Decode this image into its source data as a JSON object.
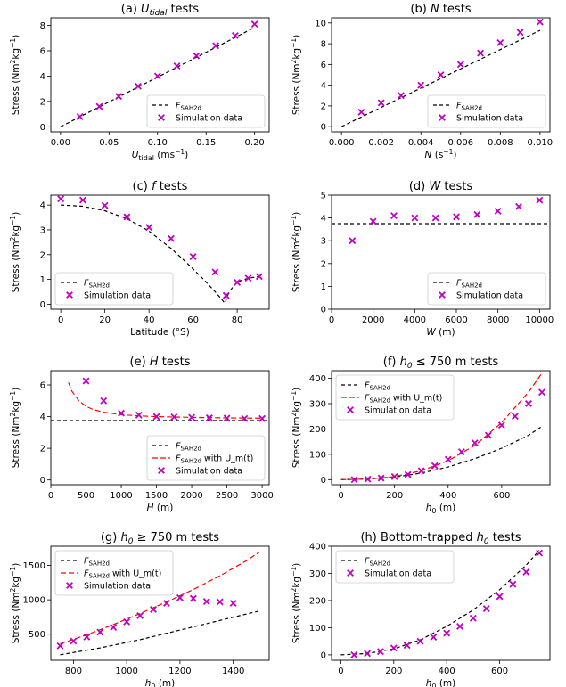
{
  "chart_data": [
    {
      "type": "scatter",
      "title_main": "(a) ",
      "title_sym": "U",
      "title_sub": "tidal",
      "title_tail": " tests",
      "xlabel_sym": "U",
      "xlabel_sub": "tidal",
      "xlabel_tail": " (ms",
      "xlabel_sup": "−1",
      "xlabel_end": ")",
      "ylabel": "Stress (Nm",
      "ylabel_sup": "2",
      "ylabel_mid": "kg",
      "ylabel_sup2": "−1",
      "ylabel_end": ")",
      "xlim": [
        -0.01,
        0.215
      ],
      "ylim": [
        -0.4,
        8.6
      ],
      "xticks": [
        0.0,
        0.05,
        0.1,
        0.15,
        0.2
      ],
      "xtick_labels": [
        "0.00",
        "0.05",
        "0.10",
        "0.15",
        "0.20"
      ],
      "yticks": [
        0,
        2,
        4,
        6,
        8
      ],
      "ytick_labels": [
        "0",
        "2",
        "4",
        "6",
        "8"
      ],
      "lines": [
        {
          "name": "F_SAH2d",
          "color": "#000000",
          "x": [
            0.0,
            0.05,
            0.1,
            0.15,
            0.2
          ],
          "y": [
            0.0,
            1.96,
            3.92,
            5.88,
            7.84
          ]
        }
      ],
      "points": {
        "name": "Simulation data",
        "color": "#c000c0",
        "x": [
          0.02,
          0.04,
          0.06,
          0.08,
          0.1,
          0.12,
          0.14,
          0.16,
          0.18,
          0.2
        ],
        "y": [
          0.8,
          1.6,
          2.4,
          3.2,
          4.0,
          4.8,
          5.6,
          6.4,
          7.2,
          8.1
        ]
      },
      "legend_position": "bottom-right",
      "legend_entries": [
        {
          "label_main": "F",
          "label_sub": "SAH2d",
          "label_tail": ""
        },
        {
          "label_main": "Simulation data",
          "label_sub": "",
          "label_tail": ""
        }
      ]
    },
    {
      "type": "scatter",
      "title_main": "(b) ",
      "title_sym": "N",
      "title_sub": "",
      "title_tail": " tests",
      "xlabel_sym": "N",
      "xlabel_sub": "",
      "xlabel_tail": " (s",
      "xlabel_sup": "−1",
      "xlabel_end": ")",
      "ylabel": "Stress (Nm",
      "ylabel_sup": "2",
      "ylabel_mid": "kg",
      "ylabel_sup2": "−1",
      "ylabel_end": ")",
      "xlim": [
        -0.0005,
        0.0105
      ],
      "ylim": [
        -0.5,
        10.5
      ],
      "xticks": [
        0.0,
        0.002,
        0.004,
        0.006,
        0.008,
        0.01
      ],
      "xtick_labels": [
        "0.000",
        "0.002",
        "0.004",
        "0.006",
        "0.008",
        "0.010"
      ],
      "yticks": [
        0,
        2,
        4,
        6,
        8,
        10
      ],
      "ytick_labels": [
        "0",
        "2",
        "4",
        "6",
        "8",
        "10"
      ],
      "lines": [
        {
          "name": "F_SAH2d",
          "color": "#000000",
          "x": [
            0.0,
            0.01
          ],
          "y": [
            0.0,
            9.3
          ]
        }
      ],
      "points": {
        "name": "Simulation data",
        "color": "#c000c0",
        "x": [
          0.001,
          0.002,
          0.003,
          0.004,
          0.005,
          0.006,
          0.007,
          0.008,
          0.009,
          0.01
        ],
        "y": [
          1.4,
          2.3,
          3.0,
          4.0,
          5.0,
          6.0,
          7.1,
          8.1,
          9.1,
          10.1
        ]
      },
      "legend_position": "bottom-right",
      "legend_entries": [
        {
          "label_main": "F",
          "label_sub": "SAH2d",
          "label_tail": ""
        },
        {
          "label_main": "Simulation data",
          "label_sub": "",
          "label_tail": ""
        }
      ]
    },
    {
      "type": "scatter",
      "title_main": "(c) ",
      "title_sym": "f",
      "title_sub": "",
      "title_tail": " tests",
      "xlabel_sym": "",
      "xlabel_sub": "",
      "xlabel_tail": "Latitude (°S)",
      "xlabel_sup": "",
      "xlabel_end": "",
      "ylabel": "Stress (Nm",
      "ylabel_sup": "2",
      "ylabel_mid": "kg",
      "ylabel_sup2": "−1",
      "ylabel_end": ")",
      "xlim": [
        -4.5,
        94.5
      ],
      "ylim": [
        -0.2,
        4.4
      ],
      "xticks": [
        0,
        20,
        40,
        60,
        80
      ],
      "xtick_labels": [
        "0",
        "20",
        "40",
        "60",
        "80"
      ],
      "yticks": [
        0,
        1,
        2,
        3,
        4
      ],
      "ytick_labels": [
        "0",
        "1",
        "2",
        "3",
        "4"
      ],
      "lines": [
        {
          "name": "F_SAH2d",
          "color": "#000000",
          "x": [
            0,
            10,
            20,
            30,
            40,
            50,
            55,
            60,
            65,
            70,
            72,
            74,
            74.5,
            76,
            78,
            80,
            85,
            90
          ],
          "y": [
            4.0,
            3.95,
            3.77,
            3.45,
            2.95,
            2.25,
            1.85,
            1.42,
            0.98,
            0.5,
            0.3,
            0.08,
            0.05,
            0.42,
            0.7,
            0.9,
            1.05,
            1.12
          ]
        }
      ],
      "points": {
        "name": "Simulation data",
        "color": "#c000c0",
        "x": [
          0,
          10,
          20,
          30,
          40,
          50,
          60,
          70,
          75,
          80,
          85,
          90
        ],
        "y": [
          4.25,
          4.2,
          3.98,
          3.52,
          3.1,
          2.65,
          1.92,
          1.3,
          0.35,
          0.88,
          1.05,
          1.12
        ]
      },
      "legend_position": "bottom-left",
      "legend_entries": [
        {
          "label_main": "F",
          "label_sub": "SAH2d",
          "label_tail": ""
        },
        {
          "label_main": "Simulation data",
          "label_sub": "",
          "label_tail": ""
        }
      ]
    },
    {
      "type": "scatter",
      "title_main": "(d) ",
      "title_sym": "W",
      "title_sub": "",
      "title_tail": " tests",
      "xlabel_sym": "W",
      "xlabel_sub": "",
      "xlabel_tail": " (m)",
      "xlabel_sup": "",
      "xlabel_end": "",
      "ylabel": "Stress (Nm",
      "ylabel_sup": "2",
      "ylabel_mid": "kg",
      "ylabel_sup2": "−1",
      "ylabel_end": ")",
      "xlim": [
        0,
        10500
      ],
      "ylim": [
        0,
        5
      ],
      "xticks": [
        0,
        2000,
        4000,
        6000,
        8000,
        10000
      ],
      "xtick_labels": [
        "0",
        "2000",
        "4000",
        "6000",
        "8000",
        "10000"
      ],
      "yticks": [
        0,
        1,
        2,
        3,
        4,
        5
      ],
      "ytick_labels": [
        "0",
        "1",
        "2",
        "3",
        "4",
        "5"
      ],
      "lines": [
        {
          "name": "F_SAH2d",
          "color": "#000000",
          "x": [
            0,
            10500
          ],
          "y": [
            3.75,
            3.75
          ]
        }
      ],
      "points": {
        "name": "Simulation data",
        "color": "#c000c0",
        "x": [
          1000,
          2000,
          3000,
          4000,
          5000,
          6000,
          7000,
          8000,
          9000,
          10000
        ],
        "y": [
          3.0,
          3.85,
          4.1,
          4.0,
          4.0,
          4.05,
          4.15,
          4.3,
          4.5,
          4.78
        ]
      },
      "legend_position": "bottom-right",
      "legend_entries": [
        {
          "label_main": "F",
          "label_sub": "SAH2d",
          "label_tail": ""
        },
        {
          "label_main": "Simulation data",
          "label_sub": "",
          "label_tail": ""
        }
      ]
    },
    {
      "type": "scatter",
      "title_main": "(e) ",
      "title_sym": "H",
      "title_sub": "",
      "title_tail": " tests",
      "xlabel_sym": "H",
      "xlabel_sub": "",
      "xlabel_tail": " (m)",
      "xlabel_sup": "",
      "xlabel_end": "",
      "ylabel": "Stress (Nm",
      "ylabel_sup": "2",
      "ylabel_mid": "kg",
      "ylabel_sup2": "−1",
      "ylabel_end": ")",
      "xlim": [
        0,
        3100
      ],
      "ylim": [
        -0.3,
        6.9
      ],
      "xticks": [
        0,
        500,
        1000,
        1500,
        2000,
        2500,
        3000
      ],
      "xtick_labels": [
        "0",
        "500",
        "1000",
        "1500",
        "2000",
        "2500",
        "3000"
      ],
      "yticks": [
        0,
        2,
        4,
        6
      ],
      "ytick_labels": [
        "0",
        "2",
        "4",
        "6"
      ],
      "lines": [
        {
          "name": "F_SAH2d",
          "color": "#000000",
          "dash": "4,3",
          "x": [
            0,
            3100
          ],
          "y": [
            3.75,
            3.75
          ]
        },
        {
          "name": "F_SAH2d with U_m(t)",
          "color": "#ff0000",
          "dash": "6,3",
          "x": [
            250,
            300,
            400,
            500,
            600,
            750,
            1000,
            1250,
            1500,
            2000,
            2500,
            3000
          ],
          "y": [
            6.15,
            5.6,
            5.0,
            4.65,
            4.45,
            4.28,
            4.12,
            4.05,
            4.0,
            3.95,
            3.92,
            3.9
          ]
        }
      ],
      "points": {
        "name": "Simulation data",
        "color": "#c000c0",
        "x": [
          500,
          750,
          1000,
          1250,
          1500,
          1750,
          2000,
          2250,
          2500,
          2750,
          3000
        ],
        "y": [
          6.25,
          5.0,
          4.22,
          4.1,
          4.0,
          3.98,
          3.95,
          3.92,
          3.9,
          3.88,
          3.88
        ]
      },
      "legend_position": "bottom-right",
      "legend_entries": [
        {
          "label_main": "F",
          "label_sub": "SAH2d",
          "label_tail": ""
        },
        {
          "label_main": "F",
          "label_sub": "SAH2d",
          "label_tail": " with U_m(t)"
        },
        {
          "label_main": "Simulation data",
          "label_sub": "",
          "label_tail": ""
        }
      ]
    },
    {
      "type": "scatter",
      "title_main": "(f) ",
      "title_sym": "h",
      "title_sub": "0",
      "title_tail": " ≤ 750 m tests",
      "xlabel_sym": "h",
      "xlabel_sub": "0",
      "xlabel_tail": " (m)",
      "xlabel_sup": "",
      "xlabel_end": "",
      "ylabel": "Stress (Nm",
      "ylabel_sup": "2",
      "ylabel_mid": "kg",
      "ylabel_sup2": "−1",
      "ylabel_end": ")",
      "xlim": [
        -35,
        780
      ],
      "ylim": [
        -20,
        430
      ],
      "xticks": [
        0,
        200,
        400,
        600
      ],
      "xtick_labels": [
        "0",
        "200",
        "400",
        "600"
      ],
      "yticks": [
        0,
        100,
        200,
        300,
        400
      ],
      "ytick_labels": [
        "0",
        "100",
        "200",
        "300",
        "400"
      ],
      "lines": [
        {
          "name": "F_SAH2d",
          "color": "#000000",
          "dash": "4,3",
          "x": [
            0,
            100,
            200,
            300,
            400,
            500,
            600,
            700,
            750
          ],
          "y": [
            0,
            2,
            10,
            26,
            50,
            83,
            124,
            175,
            210
          ]
        },
        {
          "name": "F_SAH2d with U_m(t)",
          "color": "#ff0000",
          "dash": "6,3",
          "x": [
            0,
            100,
            200,
            300,
            400,
            500,
            600,
            650,
            700,
            750
          ],
          "y": [
            0,
            2,
            12,
            35,
            75,
            135,
            225,
            285,
            345,
            420
          ]
        }
      ],
      "points": {
        "name": "Simulation data",
        "color": "#c000c0",
        "x": [
          50,
          100,
          150,
          200,
          250,
          300,
          350,
          400,
          450,
          500,
          550,
          600,
          650,
          700,
          750
        ],
        "y": [
          0,
          2,
          6,
          12,
          20,
          35,
          55,
          80,
          110,
          145,
          175,
          215,
          250,
          300,
          345
        ]
      },
      "legend_position": "top-left",
      "legend_entries": [
        {
          "label_main": "F",
          "label_sub": "SAH2d",
          "label_tail": ""
        },
        {
          "label_main": "F",
          "label_sub": "SAH2d",
          "label_tail": " with U_m(t)"
        },
        {
          "label_main": "Simulation data",
          "label_sub": "",
          "label_tail": ""
        }
      ]
    },
    {
      "type": "scatter",
      "title_main": "(g) ",
      "title_sym": "h",
      "title_sub": "0",
      "title_tail": " ≥ 750 m tests",
      "xlabel_sym": "h",
      "xlabel_sub": "0",
      "xlabel_tail": " (m)",
      "xlabel_sup": "",
      "xlabel_end": "",
      "ylabel": "Stress (Nm",
      "ylabel_sup": "2",
      "ylabel_mid": "kg",
      "ylabel_sup2": "−1",
      "ylabel_end": ")",
      "xlim": [
        715,
        1535
      ],
      "ylim": [
        120,
        1780
      ],
      "xticks": [
        800,
        1000,
        1200,
        1400
      ],
      "xtick_labels": [
        "800",
        "1000",
        "1200",
        "1400"
      ],
      "yticks": [
        500,
        1000,
        1500
      ],
      "ytick_labels": [
        "500",
        "1000",
        "1500"
      ],
      "lines": [
        {
          "name": "F_SAH2d",
          "color": "#000000",
          "dash": "4,3",
          "x": [
            750,
            900,
            1050,
            1200,
            1350,
            1500
          ],
          "y": [
            200,
            300,
            420,
            560,
            700,
            840
          ]
        },
        {
          "name": "F_SAH2d with U_m(t)",
          "color": "#ff0000",
          "dash": "6,3",
          "x": [
            750,
            850,
            950,
            1050,
            1150,
            1250,
            1350,
            1450,
            1500
          ],
          "y": [
            360,
            490,
            640,
            800,
            970,
            1150,
            1350,
            1570,
            1700
          ]
        }
      ],
      "points": {
        "name": "Simulation data",
        "color": "#c000c0",
        "x": [
          750,
          800,
          850,
          900,
          950,
          1000,
          1050,
          1100,
          1150,
          1200,
          1250,
          1300,
          1350,
          1400
        ],
        "y": [
          330,
          400,
          460,
          530,
          600,
          680,
          770,
          860,
          950,
          1030,
          1020,
          975,
          970,
          950
        ]
      },
      "legend_position": "top-left",
      "legend_entries": [
        {
          "label_main": "F",
          "label_sub": "SAH2d",
          "label_tail": ""
        },
        {
          "label_main": "F",
          "label_sub": "SAH2d",
          "label_tail": " with U_m(t)"
        },
        {
          "label_main": "Simulation data",
          "label_sub": "",
          "label_tail": ""
        }
      ]
    },
    {
      "type": "scatter",
      "title_main": "(h) Bottom-trapped ",
      "title_sym": "h",
      "title_sub": "0",
      "title_tail": " tests",
      "xlabel_sym": "h",
      "xlabel_sub": "0",
      "xlabel_tail": " (m)",
      "xlabel_sup": "",
      "xlabel_end": "",
      "ylabel": "Stress (Nm",
      "ylabel_sup": "2",
      "ylabel_mid": "kg",
      "ylabel_sup2": "−1",
      "ylabel_end": ")",
      "xlim": [
        -35,
        790
      ],
      "ylim": [
        -20,
        400
      ],
      "xticks": [
        0,
        200,
        400,
        600
      ],
      "xtick_labels": [
        "0",
        "200",
        "400",
        "600"
      ],
      "yticks": [
        0,
        100,
        200,
        300,
        400
      ],
      "ytick_labels": [
        "0",
        "100",
        "200",
        "300",
        "400"
      ],
      "lines": [
        {
          "name": "F_SAH2d",
          "color": "#000000",
          "dash": "4,3",
          "x": [
            0,
            100,
            200,
            300,
            400,
            500,
            600,
            700,
            750
          ],
          "y": [
            0,
            5,
            22,
            55,
            105,
            165,
            240,
            330,
            385
          ]
        }
      ],
      "points": {
        "name": "Simulation data",
        "color": "#c000c0",
        "x": [
          50,
          100,
          150,
          200,
          250,
          300,
          350,
          400,
          450,
          500,
          550,
          600,
          650,
          700,
          750
        ],
        "y": [
          0,
          5,
          12,
          25,
          35,
          50,
          65,
          80,
          105,
          135,
          170,
          215,
          260,
          305,
          375
        ]
      },
      "legend_position": "top-left",
      "legend_entries": [
        {
          "label_main": "F",
          "label_sub": "SAH2d",
          "label_tail": ""
        },
        {
          "label_main": "Simulation data",
          "label_sub": "",
          "label_tail": ""
        }
      ]
    }
  ]
}
